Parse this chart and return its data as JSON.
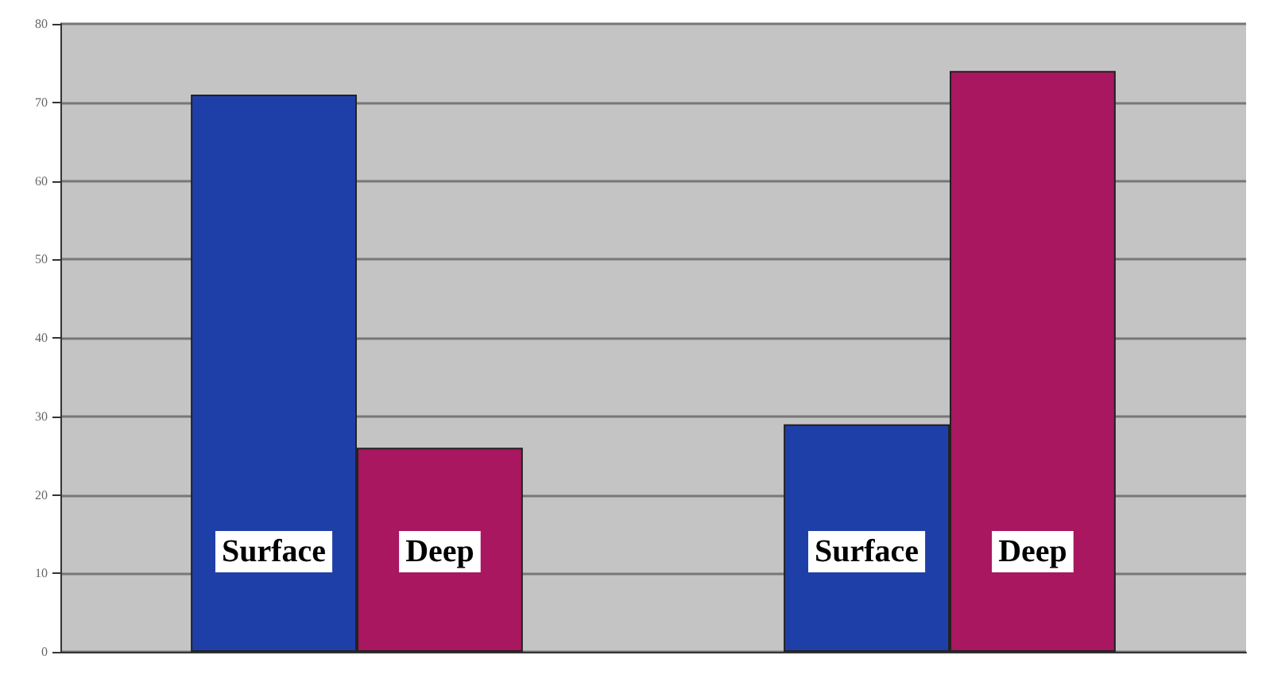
{
  "chart_data": {
    "type": "bar",
    "categories": [
      null,
      null
    ],
    "series": [
      {
        "name": "Surface",
        "color": "#1f3fa8",
        "values": [
          71,
          29
        ]
      },
      {
        "name": "Deep",
        "color": "#a8175f",
        "values": [
          26,
          74
        ]
      }
    ],
    "ylim": [
      0,
      80
    ],
    "yticks": [
      0,
      10,
      20,
      30,
      40,
      50,
      60,
      70,
      80
    ],
    "grid": "y",
    "legend": false
  }
}
